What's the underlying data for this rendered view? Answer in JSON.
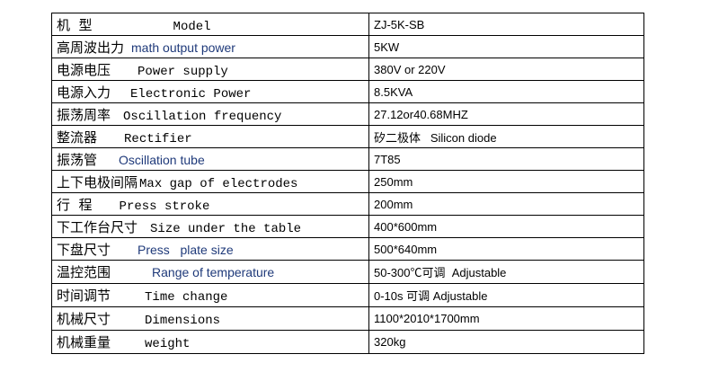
{
  "rows": [
    {
      "cn": "机  型",
      "en": "Model",
      "value": "ZJ-5K-SB",
      "style": "mono",
      "gap": 90
    },
    {
      "cn": "高周波出力",
      "en": "math output power",
      "value": "5KW",
      "style": "blue",
      "gap": 8
    },
    {
      "cn": "电源电压",
      "en": "Power supply",
      "value": "380V or 220V",
      "style": "mono",
      "gap": 30
    },
    {
      "cn": "电源入力",
      "en": "Electronic Power",
      "value": "8.5KVA",
      "style": "mono",
      "gap": 22
    },
    {
      "cn": "振荡周率",
      "en": "Oscillation frequency",
      "value": "27.12or40.68MHZ",
      "style": "mono",
      "gap": 14
    },
    {
      "cn": "整流器",
      "en": "Rectifier",
      "value": "矽二极体   Silicon diode",
      "style": "mono",
      "gap": 30
    },
    {
      "cn": "振荡管",
      "en": "Oscillation tube",
      "value": "7T85",
      "style": "blue",
      "gap": 24
    },
    {
      "cn": "上下电极间隔",
      "en": "Max gap of electrodes",
      "value": "250mm",
      "style": "mono",
      "gap": 2
    },
    {
      "cn": "行  程",
      "en": "Press stroke",
      "value": "200mm",
      "style": "mono",
      "gap": 30
    },
    {
      "cn": "下工作台尺寸",
      "en": "Size under the table",
      "value": "400*600mm",
      "style": "mono",
      "gap": 14
    },
    {
      "cn": "下盘尺寸",
      "en": "Press   plate size",
      "value": "500*640mm",
      "style": "blue",
      "gap": 30
    },
    {
      "cn": "温控范围",
      "en": "Range of temperature",
      "value": "50-300℃可调  Adjustable",
      "style": "blue",
      "gap": 46
    },
    {
      "cn": "时间调节",
      "en": "Time change",
      "value": "0-10s 可调 Adjustable",
      "style": "mono",
      "gap": 38
    },
    {
      "cn": "机械尺寸",
      "en": "Dimensions",
      "value": "1100*2010*1700mm",
      "style": "mono",
      "gap": 38
    },
    {
      "cn": "机械重量",
      "en": "weight",
      "value": "320kg",
      "style": "mono",
      "gap": 38
    }
  ]
}
